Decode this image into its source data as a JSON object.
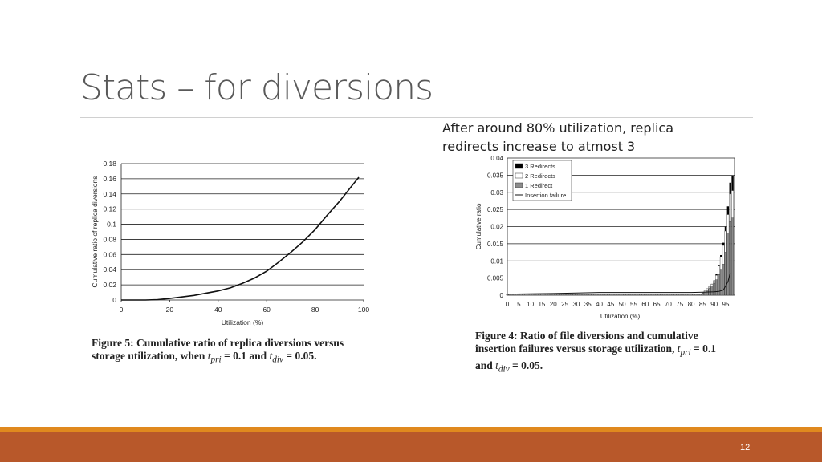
{
  "slide": {
    "title": "Stats – for diversions",
    "note": "After around 80% utilization, replica redirects increase to atmost 3",
    "page_number": "12",
    "colors": {
      "accent_strip": "#e0891e",
      "footer": "#b8582a"
    }
  },
  "captions": {
    "left": {
      "pre": "Figure 5: Cumulative ratio of replica diversions versus storage utilization, when ",
      "t1": "t",
      "s1": "pri",
      "mid": " = 0.1 and ",
      "t2": "t",
      "s2": "div",
      "post": " = 0.05."
    },
    "right": {
      "pre": "Figure 4: Ratio of file diversions and cumulative insertion failures versus storage utilization, ",
      "t1": "t",
      "s1": "pri",
      "mid": " = 0.1 and ",
      "t2": "t",
      "s2": "div",
      "post": " = 0.05."
    }
  },
  "chart_data": [
    {
      "type": "line",
      "xlabel": "Utilization (%)",
      "ylabel": "Cumulative ratio of replica diversions",
      "xlim": [
        0,
        100
      ],
      "ylim": [
        0,
        0.18
      ],
      "xticks": [
        "0",
        "20",
        "40",
        "60",
        "80",
        "100"
      ],
      "yticks": [
        "0",
        "0.02",
        "0.04",
        "0.06",
        "0.08",
        "0.1",
        "0.12",
        "0.14",
        "0.16",
        "0.18"
      ],
      "grid": true,
      "x": [
        0,
        10,
        15,
        20,
        30,
        40,
        45,
        50,
        55,
        60,
        65,
        70,
        75,
        80,
        85,
        90,
        95,
        98
      ],
      "y": [
        0,
        0,
        0.0005,
        0.002,
        0.006,
        0.012,
        0.016,
        0.022,
        0.029,
        0.038,
        0.05,
        0.063,
        0.077,
        0.093,
        0.112,
        0.13,
        0.15,
        0.162
      ]
    },
    {
      "type": "bar",
      "stacked": true,
      "xlabel": "Utilization (%)",
      "ylabel": "Cumulative ratio",
      "xlim": [
        0,
        98
      ],
      "ylim": [
        0,
        0.04
      ],
      "xticks": [
        "0",
        "5",
        "10",
        "15",
        "20",
        "25",
        "30",
        "35",
        "40",
        "45",
        "50",
        "55",
        "60",
        "65",
        "70",
        "75",
        "80",
        "85",
        "90",
        "95"
      ],
      "yticks": [
        "0",
        "0.005",
        "0.01",
        "0.015",
        "0.02",
        "0.025",
        "0.03",
        "0.035",
        "0.04"
      ],
      "grid": true,
      "legend": "top-left",
      "legend_entries": [
        "3 Redirects",
        "2 Redirects",
        "1 Redirect",
        "Insertion failure"
      ],
      "colors": {
        "3 Redirects": "#000000",
        "2 Redirects": "#ffffff",
        "1 Redirect": "#8c8c8c",
        "Insertion failure": "#000000"
      },
      "bars_x": [
        84,
        85,
        86,
        87,
        88,
        89,
        90,
        91,
        92,
        93,
        94,
        95,
        96,
        97,
        98
      ],
      "one_redirect": [
        0.0003,
        0.0006,
        0.001,
        0.0015,
        0.0021,
        0.0027,
        0.0035,
        0.0045,
        0.006,
        0.0073,
        0.009,
        0.0125,
        0.0182,
        0.0215,
        0.0225
      ],
      "two_redirects_top": [
        0.0004,
        0.0008,
        0.0013,
        0.0019,
        0.0025,
        0.0032,
        0.0042,
        0.0058,
        0.0085,
        0.0112,
        0.0145,
        0.0187,
        0.0235,
        0.0295,
        0.0305
      ],
      "three_redirects_top": [
        0.0004,
        0.0008,
        0.0013,
        0.0019,
        0.0025,
        0.0033,
        0.0043,
        0.0063,
        0.0087,
        0.0117,
        0.0153,
        0.02,
        0.0259,
        0.0328,
        0.0348
      ],
      "baseline_bar_value": 0.0003,
      "insertion_failure": {
        "x": [
          0,
          10,
          20,
          40,
          60,
          80,
          85,
          90,
          92,
          94,
          96,
          97
        ],
        "y": [
          0.0003,
          0.0004,
          0.0005,
          0.0008,
          0.0008,
          0.0008,
          0.0009,
          0.001,
          0.0011,
          0.0015,
          0.004,
          0.0065
        ]
      }
    }
  ]
}
